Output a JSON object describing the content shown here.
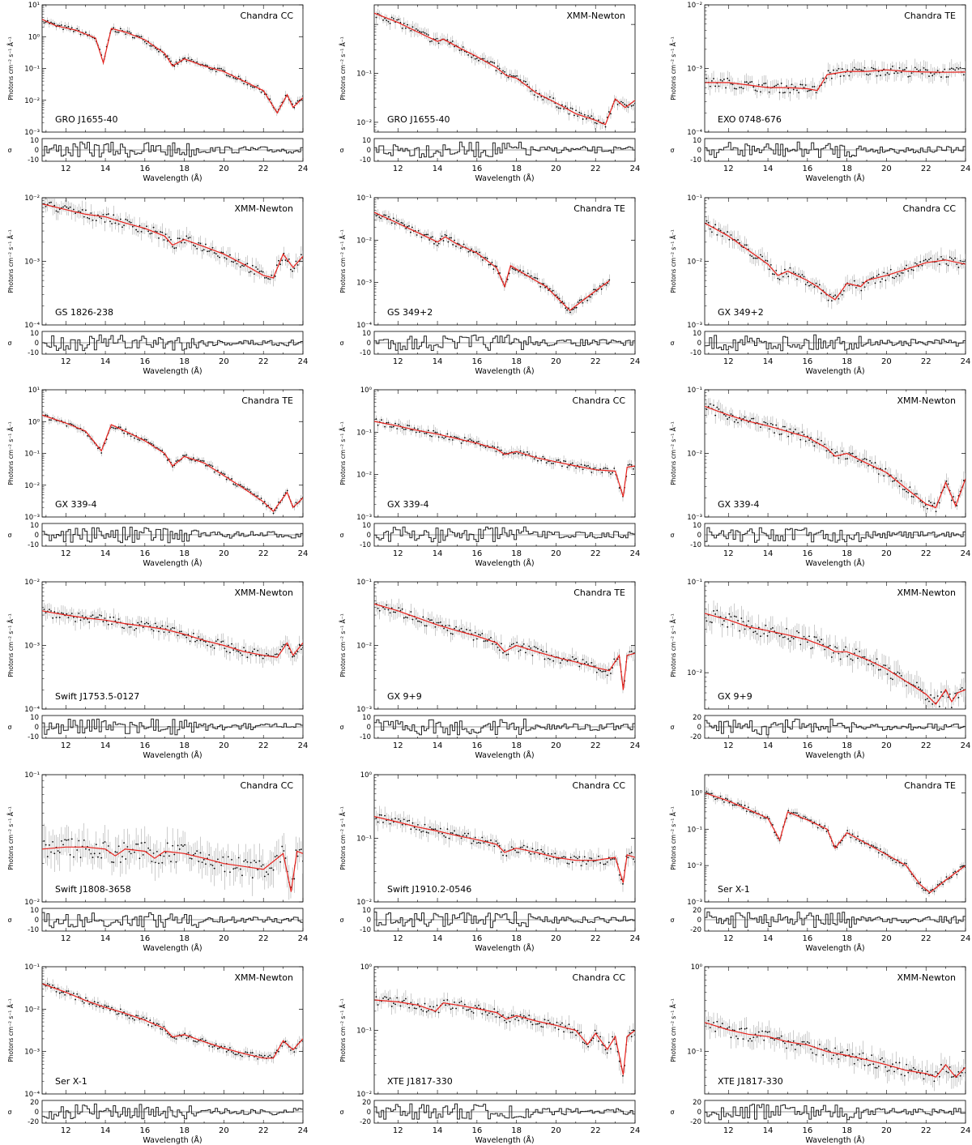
{
  "figure": {
    "ylabel": "Photons cm⁻² s⁻¹ Å⁻¹",
    "xlabel": "Wavelength (Å)",
    "residual_label": "σ",
    "x_ticks": [
      "12",
      "14",
      "16",
      "18",
      "20",
      "22",
      "24"
    ]
  },
  "colors": {
    "model": "#e8211c",
    "data": "#000000",
    "frame": "#000000"
  },
  "chart_data": [
    {
      "type": "line",
      "title": "Chandra CC",
      "source": "GRO J1655-40",
      "xlim": [
        10.8,
        24
      ],
      "ylim_log": [
        -3,
        1
      ],
      "ytick_labels": [
        "10¹",
        "10⁰",
        "10⁻¹",
        "10⁻²",
        "10⁻³"
      ],
      "resid_range": [
        -10,
        10
      ],
      "resid_ticks": [
        "10",
        "0",
        "-10"
      ],
      "model": {
        "x": [
          10.8,
          11.5,
          12.5,
          13.5,
          13.9,
          14.3,
          15,
          16,
          17,
          17.4,
          18,
          19,
          20,
          21,
          22,
          22.7,
          23.2,
          23.5,
          24
        ],
        "y": [
          3.5,
          2.2,
          1.6,
          0.9,
          0.15,
          1.8,
          1.4,
          0.8,
          0.3,
          0.12,
          0.2,
          0.12,
          0.08,
          0.04,
          0.02,
          0.004,
          0.015,
          0.006,
          0.012
        ]
      }
    },
    {
      "type": "line",
      "title": "XMM-Newton",
      "source": "GRO J1655-40",
      "xlim": [
        10.8,
        24
      ],
      "ylim_log": [
        -3.2,
        -0.6
      ],
      "ytick_labels": [
        "",
        "10⁻¹",
        "10⁻²",
        "10⁻³"
      ],
      "ytick_vals": [
        -1,
        -2,
        -3
      ],
      "resid_range": [
        -10,
        10
      ],
      "resid_ticks": [
        "10",
        "0",
        "-10"
      ],
      "model": {
        "x": [
          10.8,
          12,
          13,
          14,
          14.3,
          15,
          16,
          17,
          17.5,
          18,
          19,
          20,
          21,
          22,
          22.5,
          23,
          23.5,
          24
        ],
        "y": [
          0.17,
          0.11,
          0.07,
          0.045,
          0.05,
          0.035,
          0.022,
          0.013,
          0.009,
          0.008,
          0.004,
          0.0025,
          0.0015,
          0.0011,
          0.0009,
          0.003,
          0.002,
          0.0028
        ]
      }
    },
    {
      "type": "line",
      "title": "Chandra TE",
      "source": "EXO 0748-676",
      "xlim": [
        10.8,
        24
      ],
      "ylim_log": [
        -4,
        -2
      ],
      "ytick_labels": [
        "10⁻²",
        "10⁻³",
        "10⁻⁴"
      ],
      "resid_range": [
        -10,
        10
      ],
      "resid_ticks": [
        "10",
        "0",
        "-10"
      ],
      "model": {
        "x": [
          10.8,
          12,
          13,
          14,
          15,
          16,
          16.5,
          17,
          18,
          19,
          20,
          21,
          22,
          23,
          24
        ],
        "y": [
          0.0006,
          0.0006,
          0.00055,
          0.0005,
          0.0005,
          0.00048,
          0.00045,
          0.0008,
          0.0009,
          0.0009,
          0.00095,
          0.0009,
          0.00088,
          0.00087,
          0.00088
        ]
      }
    },
    {
      "type": "line",
      "title": "XMM-Newton",
      "source": "GS 1826-238",
      "xlim": [
        10.8,
        24
      ],
      "ylim_log": [
        -4,
        -2
      ],
      "ytick_labels": [
        "10⁻²",
        "10⁻³",
        "10⁻⁴"
      ],
      "resid_range": [
        -10,
        10
      ],
      "resid_ticks": [
        "10",
        "0",
        "-10"
      ],
      "model": {
        "x": [
          10.8,
          12,
          13,
          14,
          15,
          16,
          17,
          17.4,
          18,
          19,
          20,
          21,
          22,
          22.5,
          23,
          23.5,
          24
        ],
        "y": [
          0.008,
          0.0065,
          0.0055,
          0.005,
          0.004,
          0.0033,
          0.0025,
          0.0018,
          0.0022,
          0.0017,
          0.0013,
          0.0009,
          0.0006,
          0.00055,
          0.0013,
          0.0008,
          0.0012
        ]
      }
    },
    {
      "type": "line",
      "title": "Chandra TE",
      "source": "GS 349+2",
      "xlim": [
        10.8,
        24
      ],
      "ylim_log": [
        -4,
        -1
      ],
      "ytick_labels": [
        "10⁻¹",
        "10⁻²",
        "10⁻³",
        "10⁻⁴"
      ],
      "resid_range": [
        -10,
        10
      ],
      "resid_ticks": [
        "10",
        "0",
        "-10"
      ],
      "model": {
        "x": [
          10.8,
          12,
          13,
          14,
          14.4,
          15,
          16,
          17,
          17.4,
          17.7,
          18.5,
          19.5,
          20.7,
          21.7,
          22.7
        ],
        "y": [
          0.045,
          0.025,
          0.015,
          0.009,
          0.012,
          0.008,
          0.005,
          0.0022,
          0.0008,
          0.0025,
          0.0015,
          0.0008,
          0.00022,
          0.0005,
          0.0011
        ]
      }
    },
    {
      "type": "line",
      "title": "Chandra CC",
      "source": "GX 349+2",
      "xlim": [
        10.8,
        24
      ],
      "ylim_log": [
        -3,
        -1
      ],
      "ytick_labels": [
        "10⁻¹",
        "10⁻²",
        "10⁻³"
      ],
      "resid_range": [
        -10,
        10
      ],
      "resid_ticks": [
        "10",
        "0",
        "-10"
      ],
      "model": {
        "x": [
          10.8,
          12,
          13,
          14,
          14.5,
          15,
          16,
          16.5,
          17,
          17.4,
          18,
          18.7,
          19,
          20,
          21,
          22,
          23,
          24
        ],
        "y": [
          0.04,
          0.025,
          0.015,
          0.009,
          0.006,
          0.007,
          0.005,
          0.004,
          0.003,
          0.0025,
          0.0045,
          0.004,
          0.005,
          0.006,
          0.0075,
          0.0095,
          0.0105,
          0.009
        ]
      }
    },
    {
      "type": "line",
      "title": "Chandra TE",
      "source": "GX 339-4",
      "xlim": [
        10.8,
        24
      ],
      "ylim_log": [
        -3,
        1
      ],
      "ytick_labels": [
        "10¹",
        "10⁰",
        "10⁻¹",
        "10⁻²",
        "10⁻³"
      ],
      "resid_range": [
        -10,
        10
      ],
      "resid_ticks": [
        "10",
        "0",
        "-10"
      ],
      "model": {
        "x": [
          10.8,
          12,
          13,
          13.8,
          14.3,
          15,
          16,
          17,
          17.4,
          18,
          19,
          20,
          21,
          22,
          22.5,
          23.2,
          23.5,
          24
        ],
        "y": [
          1.6,
          0.9,
          0.5,
          0.12,
          0.8,
          0.5,
          0.25,
          0.1,
          0.04,
          0.08,
          0.05,
          0.02,
          0.008,
          0.003,
          0.0015,
          0.006,
          0.002,
          0.004
        ]
      }
    },
    {
      "type": "line",
      "title": "Chandra CC",
      "source": "GX 339-4",
      "xlim": [
        10.8,
        24
      ],
      "ylim_log": [
        -3,
        0
      ],
      "ytick_labels": [
        "10⁰",
        "10⁻¹",
        "10⁻²",
        "10⁻³"
      ],
      "resid_range": [
        -10,
        10
      ],
      "resid_ticks": [
        "10",
        "0",
        "-10"
      ],
      "model": {
        "x": [
          10.8,
          12,
          13,
          14,
          15,
          16,
          17,
          17.4,
          18,
          19,
          20,
          21,
          22,
          23,
          23.4,
          23.6,
          24
        ],
        "y": [
          0.18,
          0.14,
          0.11,
          0.09,
          0.07,
          0.055,
          0.04,
          0.03,
          0.035,
          0.025,
          0.02,
          0.016,
          0.013,
          0.012,
          0.003,
          0.015,
          0.016
        ]
      }
    },
    {
      "type": "line",
      "title": "XMM-Newton",
      "source": "GX 339-4",
      "xlim": [
        10.8,
        24
      ],
      "ylim_log": [
        -3,
        -1
      ],
      "ytick_labels": [
        "10⁻¹",
        "10⁻²",
        "10⁻³"
      ],
      "resid_range": [
        -10,
        10
      ],
      "resid_ticks": [
        "10",
        "0",
        "-10"
      ],
      "model": {
        "x": [
          10.8,
          12,
          13,
          14,
          15,
          16,
          17,
          17.4,
          18,
          19,
          20,
          21,
          22,
          22.5,
          23,
          23.5,
          24
        ],
        "y": [
          0.055,
          0.04,
          0.032,
          0.027,
          0.022,
          0.018,
          0.012,
          0.009,
          0.01,
          0.007,
          0.005,
          0.0028,
          0.0016,
          0.0014,
          0.0035,
          0.0015,
          0.004
        ]
      }
    },
    {
      "type": "line",
      "title": "XMM-Newton",
      "source": "Swift J1753.5-0127",
      "xlim": [
        10.8,
        24
      ],
      "ylim_log": [
        -4,
        -2
      ],
      "ytick_labels": [
        "10⁻²",
        "10⁻³",
        "10⁻⁴"
      ],
      "resid_range": [
        -10,
        10
      ],
      "resid_ticks": [
        "10",
        "0",
        "-10"
      ],
      "model": {
        "x": [
          10.8,
          12,
          13,
          14,
          15,
          16,
          17,
          18,
          19,
          20,
          21,
          22,
          22.7,
          23.2,
          23.5,
          24
        ],
        "y": [
          0.0035,
          0.003,
          0.0027,
          0.0025,
          0.0022,
          0.002,
          0.0018,
          0.0015,
          0.0012,
          0.001,
          0.0008,
          0.0007,
          0.00065,
          0.0011,
          0.0007,
          0.0011
        ]
      }
    },
    {
      "type": "line",
      "title": "Chandra TE",
      "source": "GX 9+9",
      "xlim": [
        10.8,
        24
      ],
      "ylim_log": [
        -3,
        -1
      ],
      "ytick_labels": [
        "10⁻¹",
        "10⁻²",
        "10⁻³"
      ],
      "resid_range": [
        -10,
        10
      ],
      "resid_ticks": [
        "10",
        "0",
        "-10"
      ],
      "model": {
        "x": [
          10.8,
          12,
          13,
          14,
          15,
          16,
          17,
          17.4,
          18,
          19,
          20,
          21,
          22,
          22.7,
          23.2,
          23.4,
          23.6,
          24
        ],
        "y": [
          0.045,
          0.035,
          0.027,
          0.021,
          0.017,
          0.014,
          0.011,
          0.008,
          0.01,
          0.008,
          0.0065,
          0.0055,
          0.0045,
          0.004,
          0.007,
          0.002,
          0.007,
          0.0075
        ]
      }
    },
    {
      "type": "line",
      "title": "XMM-Newton",
      "source": "GX 9+9",
      "xlim": [
        10.8,
        24
      ],
      "ylim_log": [
        -2.4,
        -1
      ],
      "ytick_labels": [
        "10⁻¹",
        "10⁻²"
      ],
      "ytick_vals": [
        -1,
        -2
      ],
      "resid_range": [
        -20,
        20
      ],
      "resid_ticks": [
        "20",
        "0",
        "-20"
      ],
      "model": {
        "x": [
          10.8,
          12,
          13,
          14,
          15,
          16,
          17,
          17.4,
          18,
          19,
          20,
          21,
          22,
          22.5,
          23,
          23.3,
          23.6,
          24
        ],
        "y": [
          0.045,
          0.038,
          0.032,
          0.029,
          0.026,
          0.023,
          0.019,
          0.017,
          0.017,
          0.014,
          0.011,
          0.008,
          0.0058,
          0.0045,
          0.0065,
          0.0048,
          0.006,
          0.0065
        ]
      }
    },
    {
      "type": "line",
      "title": "Chandra CC",
      "source": "Swift J1808-3658",
      "xlim": [
        10.8,
        24
      ],
      "ylim_log": [
        -2,
        -1
      ],
      "ytick_labels": [
        "10⁻¹",
        "10⁻²"
      ],
      "resid_range": [
        -10,
        10
      ],
      "resid_ticks": [
        "10",
        "0",
        "-10"
      ],
      "model": {
        "x": [
          10.8,
          12,
          13,
          14,
          14.5,
          15,
          16,
          16.5,
          17,
          18,
          19,
          20,
          21,
          22,
          23,
          23.4,
          23.7,
          24
        ],
        "y": [
          0.026,
          0.027,
          0.027,
          0.026,
          0.023,
          0.026,
          0.025,
          0.022,
          0.025,
          0.024,
          0.022,
          0.02,
          0.019,
          0.018,
          0.024,
          0.012,
          0.025,
          0.024
        ]
      }
    },
    {
      "type": "line",
      "title": "Chandra CC",
      "source": "Swift J1910.2-0546",
      "xlim": [
        10.8,
        24
      ],
      "ylim_log": [
        -2,
        0
      ],
      "ytick_labels": [
        "10⁰",
        "10⁻¹",
        "10⁻²"
      ],
      "resid_range": [
        -10,
        10
      ],
      "resid_ticks": [
        "10",
        "0",
        "-10"
      ],
      "model": {
        "x": [
          10.8,
          12,
          13,
          14,
          15,
          16,
          17,
          17.4,
          18,
          19,
          20,
          21,
          22,
          23,
          23.4,
          23.6,
          24
        ],
        "y": [
          0.22,
          0.18,
          0.15,
          0.13,
          0.11,
          0.095,
          0.08,
          0.06,
          0.07,
          0.06,
          0.05,
          0.045,
          0.045,
          0.05,
          0.02,
          0.055,
          0.05
        ]
      }
    },
    {
      "type": "line",
      "title": "Chandra TE",
      "source": "Ser X-1",
      "xlim": [
        10.8,
        24
      ],
      "ylim_log": [
        -3,
        0.5
      ],
      "ytick_labels": [
        "10⁰",
        "10⁻¹",
        "10⁻²",
        "10⁻³"
      ],
      "ytick_vals": [
        0,
        -1,
        -2,
        -3
      ],
      "resid_range": [
        -20,
        20
      ],
      "resid_ticks": [
        "20",
        "0",
        "-20"
      ],
      "model": {
        "x": [
          10.8,
          12,
          13,
          14,
          14.6,
          15,
          16,
          17,
          17.4,
          18,
          19,
          20,
          21,
          21.7,
          22.2,
          23,
          24
        ],
        "y": [
          1.0,
          0.6,
          0.35,
          0.2,
          0.05,
          0.3,
          0.18,
          0.1,
          0.03,
          0.08,
          0.04,
          0.02,
          0.01,
          0.003,
          0.0018,
          0.004,
          0.01
        ]
      }
    },
    {
      "type": "line",
      "title": "XMM-Newton",
      "source": "Ser X-1",
      "xlim": [
        10.8,
        24
      ],
      "ylim_log": [
        -4,
        -1
      ],
      "ytick_labels": [
        "10⁻¹",
        "10⁻²",
        "10⁻³",
        "10⁻⁴"
      ],
      "resid_range": [
        -20,
        20
      ],
      "resid_ticks": [
        "20",
        "0",
        "-20"
      ],
      "model": {
        "x": [
          10.8,
          12,
          13,
          14,
          15,
          16,
          17,
          17.4,
          18,
          19,
          20,
          21,
          22,
          22.5,
          23,
          23.5,
          24
        ],
        "y": [
          0.04,
          0.025,
          0.016,
          0.011,
          0.008,
          0.0055,
          0.0035,
          0.0022,
          0.0025,
          0.0017,
          0.0012,
          0.0009,
          0.0007,
          0.0007,
          0.0018,
          0.0011,
          0.002
        ]
      }
    },
    {
      "type": "line",
      "title": "Chandra CC",
      "source": "XTE J1817-330",
      "xlim": [
        10.8,
        24
      ],
      "ylim_log": [
        -2,
        0
      ],
      "ytick_labels": [
        "10⁰",
        "10⁻¹",
        "10⁻²"
      ],
      "resid_range": [
        -20,
        20
      ],
      "resid_ticks": [
        "20",
        "0",
        "-20"
      ],
      "model": {
        "x": [
          10.8,
          12,
          13,
          13.9,
          14.3,
          15,
          16,
          17,
          17.5,
          18,
          19,
          20,
          21,
          21.6,
          22,
          22.6,
          23,
          23.4,
          23.6,
          24
        ],
        "y": [
          0.3,
          0.28,
          0.25,
          0.2,
          0.27,
          0.25,
          0.22,
          0.19,
          0.15,
          0.17,
          0.14,
          0.12,
          0.1,
          0.06,
          0.09,
          0.05,
          0.08,
          0.02,
          0.08,
          0.1
        ]
      }
    },
    {
      "type": "line",
      "title": "XMM-Newton",
      "source": "XTE J1817-330",
      "xlim": [
        10.8,
        24
      ],
      "ylim_log": [
        -1.5,
        0
      ],
      "ytick_labels": [
        "10⁰",
        "10⁻¹"
      ],
      "ytick_vals": [
        0,
        -1
      ],
      "resid_range": [
        -20,
        20
      ],
      "resid_ticks": [
        "20",
        "0",
        "-20"
      ],
      "model": {
        "x": [
          10.8,
          12,
          13,
          14,
          15,
          16,
          17,
          18,
          19,
          20,
          21,
          22,
          22.5,
          23,
          23.5,
          24
        ],
        "y": [
          0.22,
          0.18,
          0.16,
          0.15,
          0.13,
          0.12,
          0.1,
          0.09,
          0.08,
          0.07,
          0.06,
          0.055,
          0.05,
          0.07,
          0.05,
          0.065
        ]
      }
    }
  ]
}
